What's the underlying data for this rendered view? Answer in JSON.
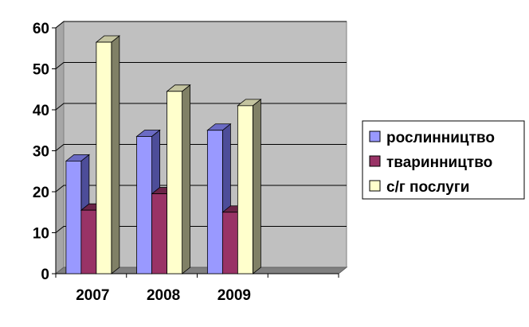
{
  "chart_data": {
    "type": "bar",
    "categories": [
      "2007",
      "2008",
      "2009"
    ],
    "series": [
      {
        "name": "рослинництво",
        "values": [
          27.5,
          33.5,
          35
        ],
        "color": "#9999ff",
        "side_color": "#4d4d99",
        "top_color": "#6b6bc4"
      },
      {
        "name": "тваринництво",
        "values": [
          15.5,
          19.5,
          15
        ],
        "color": "#993366",
        "side_color": "#4d1a33",
        "top_color": "#6b2447"
      },
      {
        "name": "с/г послуги",
        "values": [
          56.5,
          44.5,
          41
        ],
        "color": "#ffffcc",
        "side_color": "#808066",
        "top_color": "#c4c4a0"
      }
    ],
    "ylim": [
      0,
      60
    ],
    "yticks": [
      "0",
      "10",
      "20",
      "30",
      "40",
      "50",
      "60"
    ],
    "grid": true,
    "legend": "right",
    "plot_background": "#c0c0c0",
    "slots": 4
  }
}
